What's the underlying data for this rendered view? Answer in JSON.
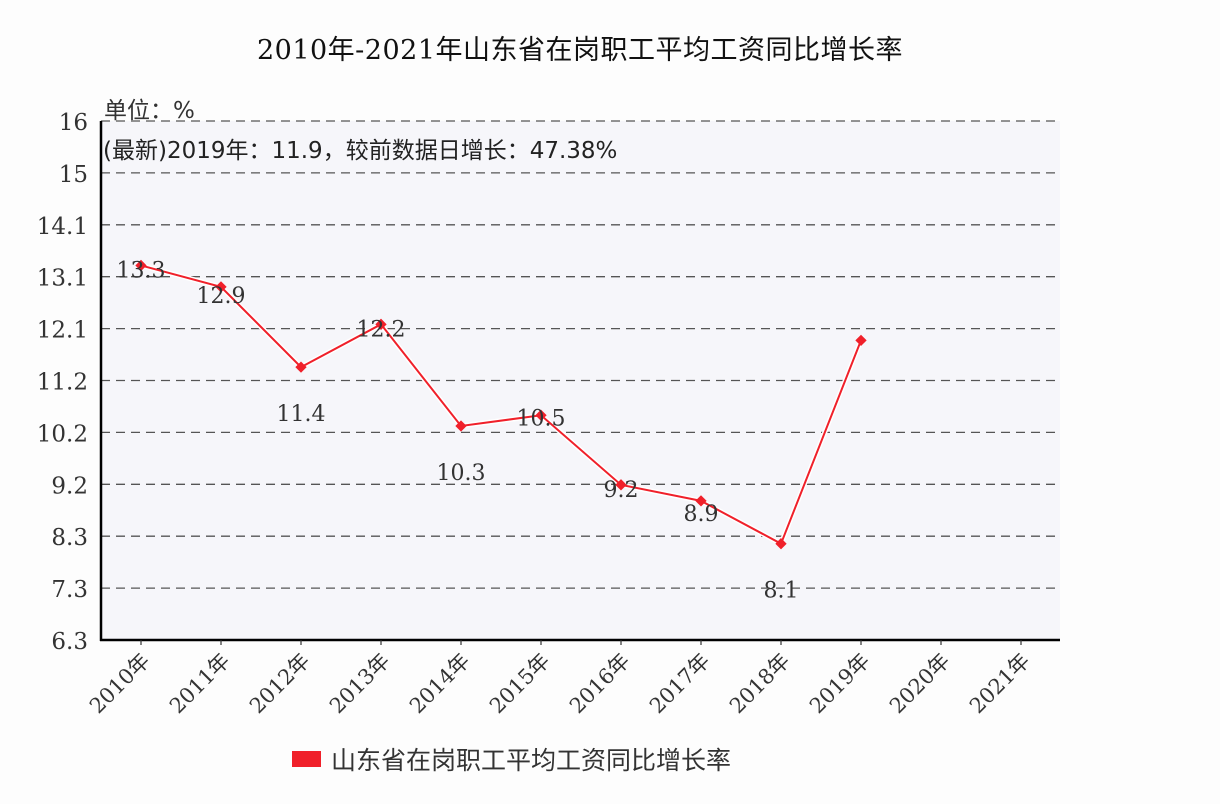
{
  "chart_data": {
    "type": "line",
    "title": "2010年-2021年山东省在岗职工平均工资同比增长率",
    "unit_label": "单位：%",
    "annotation": "(最新)2019年：11.9，较前数据日增长：47.38%",
    "xlabel": "",
    "ylabel": "",
    "ylim": [
      6.3,
      16
    ],
    "y_ticks": [
      "16",
      "15",
      "14.1",
      "13.1",
      "12.1",
      "11.2",
      "10.2",
      "9.2",
      "8.3",
      "7.3",
      "6.3"
    ],
    "categories": [
      "2010年",
      "2011年",
      "2012年",
      "2013年",
      "2014年",
      "2015年",
      "2016年",
      "2017年",
      "2018年",
      "2019年",
      "2020年",
      "2021年"
    ],
    "series": [
      {
        "name": "山东省在岗职工平均工资同比增长率",
        "color": "#f0202a",
        "values": [
          13.3,
          12.9,
          11.4,
          12.2,
          10.3,
          10.5,
          9.2,
          8.9,
          8.1,
          11.9,
          null,
          null
        ],
        "labels": [
          "13.3",
          "12.9",
          "11.4",
          "12.2",
          "10.3",
          "10.5",
          "9.2",
          "8.9",
          "8.1",
          null,
          null,
          null
        ]
      }
    ],
    "grid": true,
    "legend_position": "bottom"
  },
  "colors": {
    "line": "#f0202a",
    "plot_bg": "#f6f6fa",
    "grid": "#555555",
    "axis": "#000000"
  }
}
